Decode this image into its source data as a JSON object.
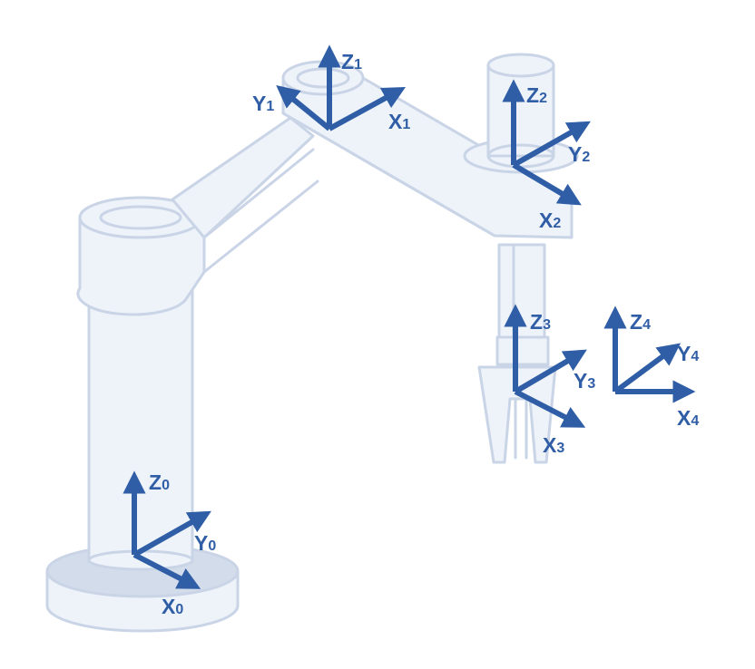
{
  "colors": {
    "axis": "#2f5ea6",
    "robot_outline": "#c9d4e6",
    "robot_fill": "#eef3fa",
    "base_fill": "#d3dcea"
  },
  "frames": [
    {
      "id": "frame-0",
      "labels": {
        "z": [
          "Z",
          "0"
        ],
        "y": [
          "Y",
          "0"
        ],
        "x": [
          "X",
          "0"
        ]
      }
    },
    {
      "id": "frame-1",
      "labels": {
        "z": [
          "Z",
          "1"
        ],
        "y": [
          "Y",
          "1"
        ],
        "x": [
          "X",
          "1"
        ]
      }
    },
    {
      "id": "frame-2",
      "labels": {
        "z": [
          "Z",
          "2"
        ],
        "y": [
          "Y",
          "2"
        ],
        "x": [
          "X",
          "2"
        ]
      }
    },
    {
      "id": "frame-3",
      "labels": {
        "z": [
          "Z",
          "3"
        ],
        "y": [
          "Y",
          "3"
        ],
        "x": [
          "X",
          "3"
        ]
      }
    },
    {
      "id": "frame-4",
      "labels": {
        "z": [
          "Z",
          "4"
        ],
        "y": [
          "Y",
          "4"
        ],
        "x": [
          "X",
          "4"
        ]
      }
    }
  ]
}
